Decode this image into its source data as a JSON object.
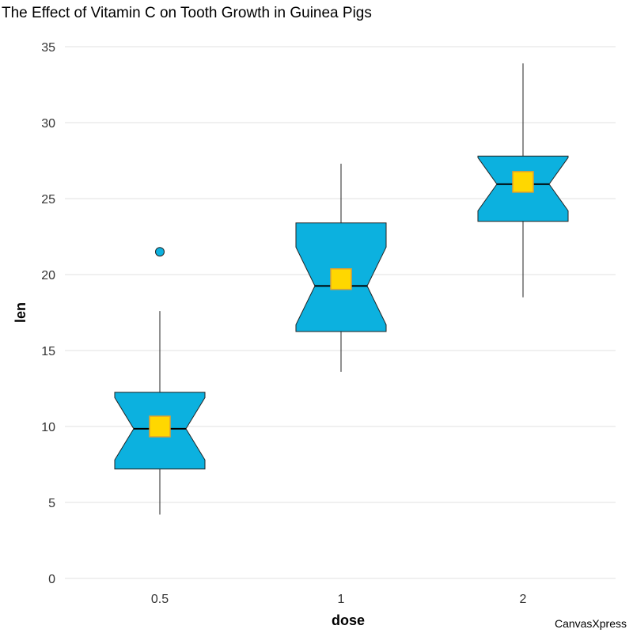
{
  "chart_data": {
    "type": "boxplot",
    "title": "The Effect of Vitamin C on Tooth Growth in Guinea Pigs",
    "xlabel": "dose",
    "ylabel": "len",
    "categories": [
      "0.5",
      "1",
      "2"
    ],
    "ylim": [
      0,
      35
    ],
    "yticks": [
      0,
      5,
      10,
      15,
      20,
      25,
      30,
      35
    ],
    "grid": true,
    "boxes": [
      {
        "category": "0.5",
        "whisker_low": 4.2,
        "q1": 7.2,
        "median": 9.85,
        "q3": 12.25,
        "whisker_high": 17.6,
        "notch_low": 7.8,
        "notch_high": 11.9,
        "mean": 10.0,
        "outliers": [
          21.5
        ]
      },
      {
        "category": "1",
        "whisker_low": 13.6,
        "q1": 16.25,
        "median": 19.25,
        "q3": 23.4,
        "whisker_high": 27.3,
        "notch_low": 16.7,
        "notch_high": 21.8,
        "mean": 19.7,
        "outliers": []
      },
      {
        "category": "2",
        "whisker_low": 18.5,
        "q1": 23.5,
        "median": 25.95,
        "q3": 27.8,
        "whisker_high": 33.9,
        "notch_low": 24.2,
        "notch_high": 27.7,
        "mean": 26.1,
        "outliers": []
      }
    ],
    "colors": {
      "box_fill": "#0cb1df",
      "box_stroke": "#222222",
      "mean_fill": "#ffd700",
      "mean_stroke": "#e0a030",
      "grid": "#e0e0e0",
      "whisker": "#222222"
    }
  },
  "watermark": "CanvasXpress"
}
